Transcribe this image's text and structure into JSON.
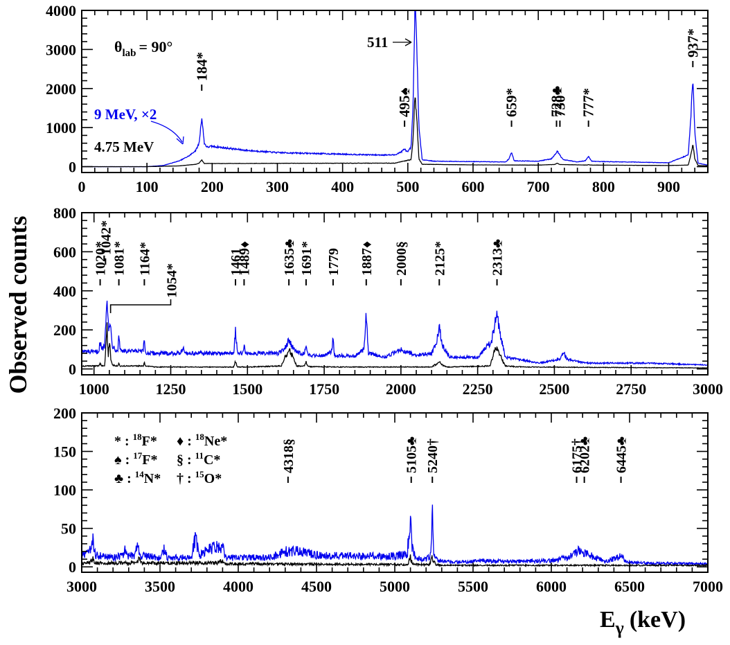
{
  "figure": {
    "ylabel": "Observed counts",
    "xlabel_main": "E",
    "xlabel_sub": "γ",
    "xlabel_unit": "(keV)"
  },
  "colors": {
    "beam9": "#0000ee",
    "beam475": "#000000",
    "axes": "#000000"
  },
  "chart_data": [
    {
      "type": "line",
      "xlim": [
        0,
        960
      ],
      "ylim": [
        -150,
        4000
      ],
      "xticks": [
        0,
        100,
        200,
        300,
        400,
        500,
        600,
        700,
        800,
        900
      ],
      "yticks": [
        0,
        1000,
        2000,
        3000,
        4000
      ],
      "annotations_text": {
        "angle_main": "θ",
        "angle_sub": "lab",
        "angle_value": "= 90°",
        "beam9": "9 MeV, ×2",
        "beam475": "4.75 MeV",
        "arrow511": "511"
      },
      "peaks": [
        {
          "x": 184,
          "label": "184*"
        },
        {
          "x": 495,
          "label": "495♠"
        },
        {
          "x": 659,
          "label": "659*"
        },
        {
          "x": 728,
          "label": "728♣"
        },
        {
          "x": 730,
          "label": "730*"
        },
        {
          "x": 777,
          "label": "777*"
        },
        {
          "x": 937,
          "label": "937*"
        }
      ],
      "series": [
        {
          "key": "beam9",
          "name": "9 MeV, ×2",
          "noise": 0.05,
          "x": [
            0,
            100,
            125,
            150,
            165,
            175,
            180,
            184,
            188,
            192,
            200,
            250,
            300,
            400,
            450,
            480,
            490,
            495,
            500,
            505,
            508,
            511,
            514,
            517,
            522,
            540,
            600,
            650,
            655,
            659,
            663,
            700,
            720,
            725,
            729,
            733,
            738,
            760,
            772,
            777,
            782,
            800,
            900,
            930,
            934,
            937,
            940,
            945,
            960
          ],
          "y": [
            0,
            0,
            30,
            150,
            280,
            420,
            600,
            1270,
            600,
            500,
            520,
            420,
            360,
            320,
            300,
            300,
            380,
            450,
            370,
            500,
            1500,
            4200,
            3000,
            1000,
            180,
            140,
            130,
            120,
            200,
            370,
            150,
            140,
            200,
            300,
            400,
            300,
            180,
            120,
            150,
            260,
            140,
            130,
            100,
            300,
            1300,
            2300,
            900,
            90,
            40
          ]
        },
        {
          "key": "beam475",
          "name": "4.75 MeV",
          "noise": 0.05,
          "x": [
            0,
            100,
            150,
            175,
            180,
            184,
            188,
            200,
            300,
            480,
            505,
            508,
            511,
            514,
            517,
            522,
            600,
            700,
            725,
            729,
            733,
            775,
            777,
            779,
            900,
            930,
            934,
            937,
            940,
            945,
            960
          ],
          "y": [
            0,
            0,
            20,
            60,
            90,
            170,
            80,
            80,
            85,
            90,
            180,
            700,
            1820,
            1200,
            200,
            60,
            45,
            40,
            55,
            90,
            55,
            40,
            55,
            40,
            30,
            40,
            300,
            580,
            200,
            30,
            20
          ]
        }
      ]
    },
    {
      "type": "line",
      "xlim": [
        960,
        3000
      ],
      "ylim": [
        -30,
        800
      ],
      "xticks": [
        1000,
        1250,
        1500,
        1750,
        2000,
        2250,
        2500,
        2750,
        3000
      ],
      "yticks": [
        0,
        200,
        400,
        600,
        800
      ],
      "peaks": [
        {
          "x": 1020,
          "label": "1020*"
        },
        {
          "x": 1042,
          "label": "1042*"
        },
        {
          "x": 1081,
          "label": "1081*"
        },
        {
          "x": 1164,
          "label": "1164*"
        },
        {
          "x": 1461,
          "label": "1461"
        },
        {
          "x": 1489,
          "label": "1489♦"
        },
        {
          "x": 1635,
          "label": "1635♣"
        },
        {
          "x": 1691,
          "label": "1691*"
        },
        {
          "x": 1779,
          "label": "1779"
        },
        {
          "x": 1887,
          "label": "1887♦"
        },
        {
          "x": 2000,
          "label": "2000§"
        },
        {
          "x": 2125,
          "label": "2125*"
        },
        {
          "x": 2313,
          "label": "2313♣"
        }
      ],
      "bracket": {
        "x1": 1054,
        "x2": 1250,
        "label": "1054*"
      },
      "series": [
        {
          "key": "beam9",
          "name": "9 MeV",
          "noise": 0.13,
          "x": [
            960,
            1000,
            1015,
            1020,
            1025,
            1035,
            1042,
            1048,
            1054,
            1060,
            1070,
            1078,
            1081,
            1085,
            1100,
            1160,
            1164,
            1168,
            1200,
            1280,
            1290,
            1300,
            1400,
            1455,
            1461,
            1467,
            1485,
            1489,
            1493,
            1600,
            1620,
            1635,
            1650,
            1670,
            1685,
            1691,
            1697,
            1750,
            1775,
            1779,
            1783,
            1850,
            1880,
            1887,
            1894,
            1950,
            1985,
            2000,
            2015,
            2050,
            2100,
            2115,
            2125,
            2135,
            2160,
            2250,
            2295,
            2308,
            2313,
            2320,
            2340,
            2450,
            2520,
            2530,
            2540,
            2600,
            2680,
            2800,
            3000
          ],
          "y": [
            90,
            85,
            90,
            140,
            100,
            120,
            400,
            200,
            220,
            120,
            100,
            100,
            180,
            100,
            90,
            90,
            150,
            80,
            80,
            80,
            110,
            80,
            80,
            80,
            200,
            80,
            80,
            130,
            80,
            80,
            100,
            150,
            100,
            80,
            80,
            110,
            70,
            70,
            90,
            180,
            70,
            65,
            100,
            290,
            80,
            60,
            90,
            100,
            90,
            70,
            80,
            130,
            220,
            120,
            60,
            60,
            140,
            250,
            310,
            200,
            60,
            30,
            50,
            90,
            50,
            30,
            30,
            30,
            20
          ]
        },
        {
          "key": "beam475",
          "name": "4.75 MeV",
          "noise": 0.2,
          "x": [
            960,
            1015,
            1020,
            1025,
            1035,
            1042,
            1046,
            1050,
            1054,
            1060,
            1078,
            1081,
            1084,
            1100,
            1160,
            1164,
            1168,
            1200,
            1455,
            1461,
            1467,
            1500,
            1610,
            1625,
            1635,
            1645,
            1660,
            1685,
            1691,
            1697,
            1800,
            2100,
            2115,
            2125,
            2135,
            2150,
            2290,
            2303,
            2313,
            2323,
            2340,
            2400,
            3000
          ],
          "y": [
            15,
            15,
            30,
            15,
            20,
            250,
            60,
            150,
            60,
            20,
            15,
            40,
            15,
            15,
            15,
            30,
            15,
            10,
            10,
            40,
            10,
            10,
            15,
            70,
            100,
            70,
            15,
            15,
            35,
            12,
            10,
            10,
            25,
            35,
            20,
            10,
            15,
            80,
            120,
            70,
            15,
            10,
            5
          ]
        }
      ]
    },
    {
      "type": "line",
      "xlim": [
        3000,
        7000
      ],
      "ylim": [
        -7,
        200
      ],
      "xticks": [
        3000,
        3500,
        4000,
        4500,
        5000,
        5500,
        6000,
        6500,
        7000
      ],
      "yticks": [
        0,
        50,
        100,
        150,
        200
      ],
      "peaks": [
        {
          "x": 4318,
          "label": "4318§"
        },
        {
          "x": 5105,
          "label": "5105♣"
        },
        {
          "x": 5240,
          "label": "5240†"
        },
        {
          "x": 6175,
          "label": "6175†"
        },
        {
          "x": 6202,
          "label": "6202♣"
        },
        {
          "x": 6445,
          "label": "6445♣"
        }
      ],
      "legend": [
        {
          "symbol": "*",
          "sup": "18",
          "nucleus": "F*"
        },
        {
          "symbol": "♦",
          "sup": "18",
          "nucleus": "Ne*"
        },
        {
          "symbol": "♠",
          "sup": "17",
          "nucleus": "F*"
        },
        {
          "symbol": "§",
          "sup": "11",
          "nucleus": "C*"
        },
        {
          "symbol": "♣",
          "sup": "14",
          "nucleus": "N*"
        },
        {
          "symbol": "†",
          "sup": "15",
          "nucleus": "O*"
        }
      ],
      "series": [
        {
          "key": "beam9",
          "name": "9 MeV",
          "noise": 0.35,
          "x": [
            3000,
            3050,
            3070,
            3090,
            3200,
            3270,
            3280,
            3290,
            3340,
            3355,
            3370,
            3500,
            3530,
            3545,
            3700,
            3728,
            3750,
            3800,
            3850,
            3900,
            3920,
            4000,
            4200,
            4300,
            4400,
            4500,
            4800,
            5000,
            5080,
            5100,
            5110,
            5130,
            5200,
            5230,
            5240,
            5250,
            5280,
            5400,
            5600,
            5700,
            6000,
            6100,
            6175,
            6250,
            6350,
            6420,
            6445,
            6480,
            6600,
            7000
          ],
          "y": [
            15,
            18,
            35,
            15,
            12,
            15,
            25,
            14,
            15,
            33,
            15,
            12,
            25,
            12,
            12,
            40,
            15,
            22,
            25,
            25,
            12,
            12,
            12,
            20,
            20,
            15,
            14,
            14,
            16,
            75,
            25,
            12,
            10,
            15,
            75,
            15,
            8,
            6,
            8,
            7,
            8,
            12,
            20,
            15,
            7,
            12,
            14,
            6,
            5,
            4
          ]
        },
        {
          "key": "beam475",
          "name": "4.75 MeV",
          "noise": 0.45,
          "x": [
            3000,
            3050,
            3070,
            3090,
            3350,
            3365,
            3380,
            3880,
            3895,
            3910,
            5080,
            5100,
            5110,
            5120,
            5220,
            5240,
            5260,
            5300,
            7000
          ],
          "y": [
            5,
            5,
            10,
            5,
            5,
            10,
            5,
            5,
            10,
            4,
            3,
            12,
            5,
            3,
            3,
            12,
            3,
            2,
            2
          ]
        }
      ]
    }
  ]
}
